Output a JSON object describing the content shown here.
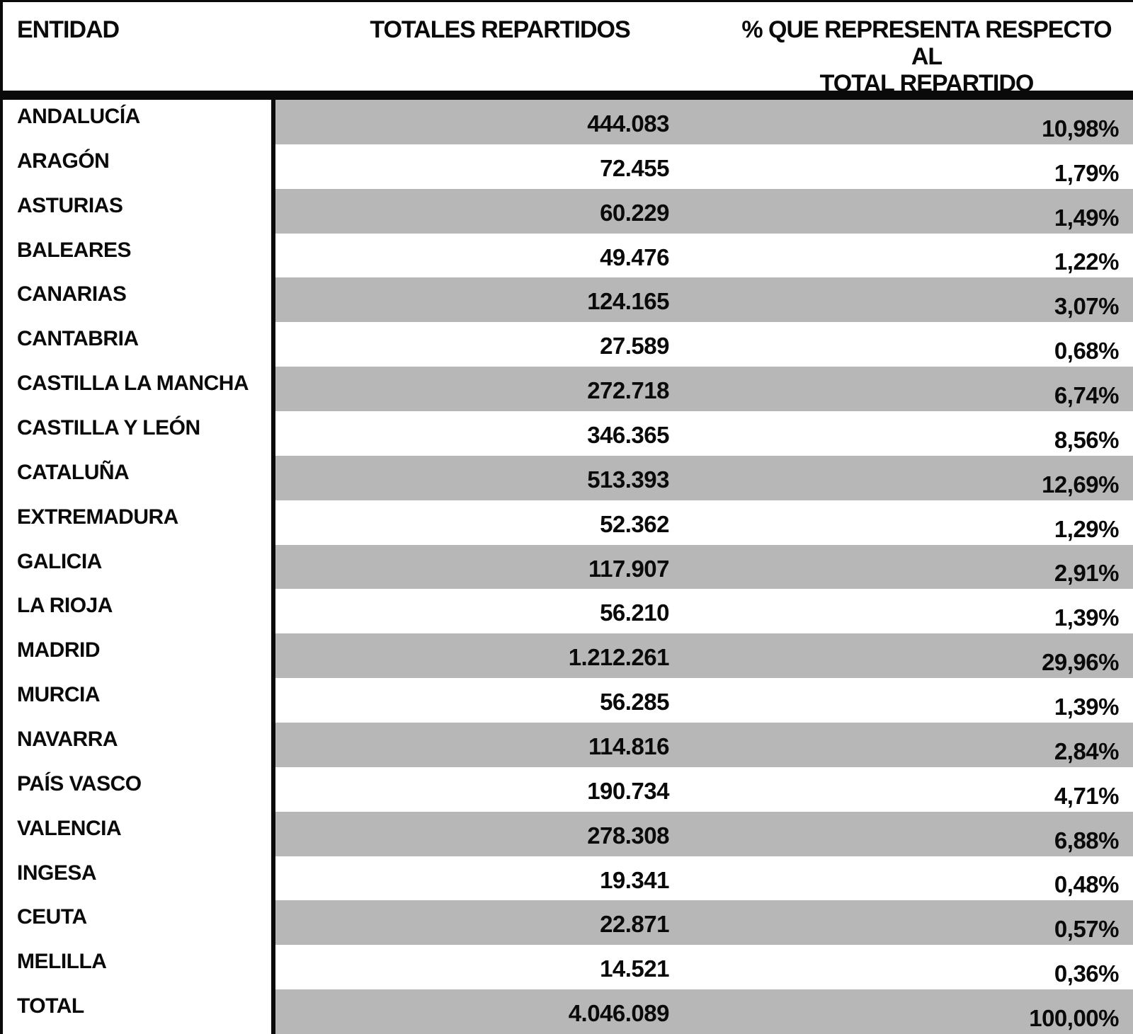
{
  "table": {
    "columns": {
      "entidad": "ENTIDAD",
      "totales": "TOTALES REPARTIDOS",
      "porcentaje_line1": "% QUE REPRESENTA RESPECTO AL",
      "porcentaje_line2": "TOTAL REPARTIDO"
    },
    "rows": [
      {
        "entidad": "ANDALUCÍA",
        "totales": "444.083",
        "porcentaje": "10,98%"
      },
      {
        "entidad": "ARAGÓN",
        "totales": "72.455",
        "porcentaje": "1,79%"
      },
      {
        "entidad": "ASTURIAS",
        "totales": "60.229",
        "porcentaje": "1,49%"
      },
      {
        "entidad": "BALEARES",
        "totales": "49.476",
        "porcentaje": "1,22%"
      },
      {
        "entidad": "CANARIAS",
        "totales": "124.165",
        "porcentaje": "3,07%"
      },
      {
        "entidad": "CANTABRIA",
        "totales": "27.589",
        "porcentaje": "0,68%"
      },
      {
        "entidad": "CASTILLA LA MANCHA",
        "totales": "272.718",
        "porcentaje": "6,74%"
      },
      {
        "entidad": "CASTILLA Y LEÓN",
        "totales": "346.365",
        "porcentaje": "8,56%"
      },
      {
        "entidad": "CATALUÑA",
        "totales": "513.393",
        "porcentaje": "12,69%"
      },
      {
        "entidad": "EXTREMADURA",
        "totales": "52.362",
        "porcentaje": "1,29%"
      },
      {
        "entidad": "GALICIA",
        "totales": "117.907",
        "porcentaje": "2,91%"
      },
      {
        "entidad": "LA RIOJA",
        "totales": "56.210",
        "porcentaje": "1,39%"
      },
      {
        "entidad": "MADRID",
        "totales": "1.212.261",
        "porcentaje": "29,96%"
      },
      {
        "entidad": "MURCIA",
        "totales": "56.285",
        "porcentaje": "1,39%"
      },
      {
        "entidad": "NAVARRA",
        "totales": "114.816",
        "porcentaje": "2,84%"
      },
      {
        "entidad": "PAÍS VASCO",
        "totales": "190.734",
        "porcentaje": "4,71%"
      },
      {
        "entidad": "VALENCIA",
        "totales": "278.308",
        "porcentaje": "6,88%"
      },
      {
        "entidad": "INGESA",
        "totales": "19.341",
        "porcentaje": "0,48%"
      },
      {
        "entidad": "CEUTA",
        "totales": "22.871",
        "porcentaje": "0,57%"
      },
      {
        "entidad": "MELILLA",
        "totales": "14.521",
        "porcentaje": "0,36%"
      },
      {
        "entidad": "TOTAL",
        "totales": "4.046.089",
        "porcentaje": "100,00%"
      }
    ],
    "colors": {
      "stripe_gray": "#b7b7b7",
      "border_black": "#0a0a0a",
      "background": "#ffffff"
    }
  }
}
